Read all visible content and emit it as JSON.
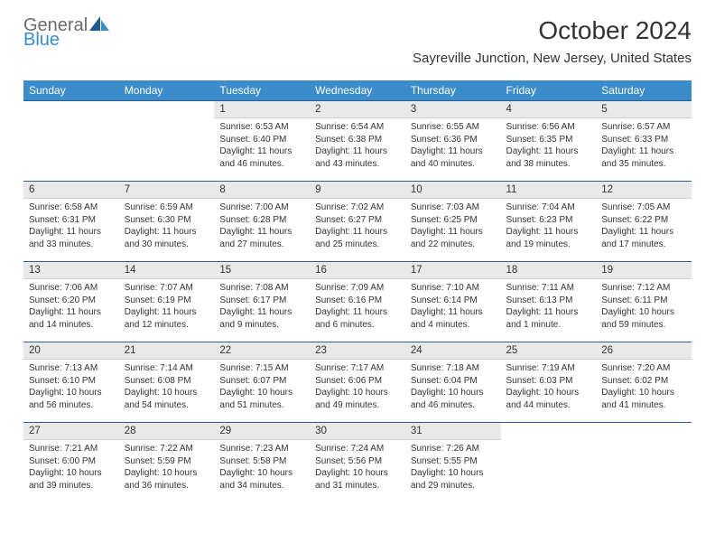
{
  "brand": {
    "part1": "General",
    "part2": "Blue"
  },
  "title": "October 2024",
  "location": "Sayreville Junction, New Jersey, United States",
  "colors": {
    "header_bg": "#3b8ccb",
    "header_text": "#ffffff",
    "daynum_bg": "#e9e9e9",
    "border_top": "#2f5e8a",
    "text": "#333333",
    "logo_gray": "#6b6b6b",
    "logo_blue": "#3b8ccb"
  },
  "days_of_week": [
    "Sunday",
    "Monday",
    "Tuesday",
    "Wednesday",
    "Thursday",
    "Friday",
    "Saturday"
  ],
  "weeks": [
    [
      null,
      null,
      {
        "n": "1",
        "sr": "Sunrise: 6:53 AM",
        "ss": "Sunset: 6:40 PM",
        "dl": "Daylight: 11 hours and 46 minutes."
      },
      {
        "n": "2",
        "sr": "Sunrise: 6:54 AM",
        "ss": "Sunset: 6:38 PM",
        "dl": "Daylight: 11 hours and 43 minutes."
      },
      {
        "n": "3",
        "sr": "Sunrise: 6:55 AM",
        "ss": "Sunset: 6:36 PM",
        "dl": "Daylight: 11 hours and 40 minutes."
      },
      {
        "n": "4",
        "sr": "Sunrise: 6:56 AM",
        "ss": "Sunset: 6:35 PM",
        "dl": "Daylight: 11 hours and 38 minutes."
      },
      {
        "n": "5",
        "sr": "Sunrise: 6:57 AM",
        "ss": "Sunset: 6:33 PM",
        "dl": "Daylight: 11 hours and 35 minutes."
      }
    ],
    [
      {
        "n": "6",
        "sr": "Sunrise: 6:58 AM",
        "ss": "Sunset: 6:31 PM",
        "dl": "Daylight: 11 hours and 33 minutes."
      },
      {
        "n": "7",
        "sr": "Sunrise: 6:59 AM",
        "ss": "Sunset: 6:30 PM",
        "dl": "Daylight: 11 hours and 30 minutes."
      },
      {
        "n": "8",
        "sr": "Sunrise: 7:00 AM",
        "ss": "Sunset: 6:28 PM",
        "dl": "Daylight: 11 hours and 27 minutes."
      },
      {
        "n": "9",
        "sr": "Sunrise: 7:02 AM",
        "ss": "Sunset: 6:27 PM",
        "dl": "Daylight: 11 hours and 25 minutes."
      },
      {
        "n": "10",
        "sr": "Sunrise: 7:03 AM",
        "ss": "Sunset: 6:25 PM",
        "dl": "Daylight: 11 hours and 22 minutes."
      },
      {
        "n": "11",
        "sr": "Sunrise: 7:04 AM",
        "ss": "Sunset: 6:23 PM",
        "dl": "Daylight: 11 hours and 19 minutes."
      },
      {
        "n": "12",
        "sr": "Sunrise: 7:05 AM",
        "ss": "Sunset: 6:22 PM",
        "dl": "Daylight: 11 hours and 17 minutes."
      }
    ],
    [
      {
        "n": "13",
        "sr": "Sunrise: 7:06 AM",
        "ss": "Sunset: 6:20 PM",
        "dl": "Daylight: 11 hours and 14 minutes."
      },
      {
        "n": "14",
        "sr": "Sunrise: 7:07 AM",
        "ss": "Sunset: 6:19 PM",
        "dl": "Daylight: 11 hours and 12 minutes."
      },
      {
        "n": "15",
        "sr": "Sunrise: 7:08 AM",
        "ss": "Sunset: 6:17 PM",
        "dl": "Daylight: 11 hours and 9 minutes."
      },
      {
        "n": "16",
        "sr": "Sunrise: 7:09 AM",
        "ss": "Sunset: 6:16 PM",
        "dl": "Daylight: 11 hours and 6 minutes."
      },
      {
        "n": "17",
        "sr": "Sunrise: 7:10 AM",
        "ss": "Sunset: 6:14 PM",
        "dl": "Daylight: 11 hours and 4 minutes."
      },
      {
        "n": "18",
        "sr": "Sunrise: 7:11 AM",
        "ss": "Sunset: 6:13 PM",
        "dl": "Daylight: 11 hours and 1 minute."
      },
      {
        "n": "19",
        "sr": "Sunrise: 7:12 AM",
        "ss": "Sunset: 6:11 PM",
        "dl": "Daylight: 10 hours and 59 minutes."
      }
    ],
    [
      {
        "n": "20",
        "sr": "Sunrise: 7:13 AM",
        "ss": "Sunset: 6:10 PM",
        "dl": "Daylight: 10 hours and 56 minutes."
      },
      {
        "n": "21",
        "sr": "Sunrise: 7:14 AM",
        "ss": "Sunset: 6:08 PM",
        "dl": "Daylight: 10 hours and 54 minutes."
      },
      {
        "n": "22",
        "sr": "Sunrise: 7:15 AM",
        "ss": "Sunset: 6:07 PM",
        "dl": "Daylight: 10 hours and 51 minutes."
      },
      {
        "n": "23",
        "sr": "Sunrise: 7:17 AM",
        "ss": "Sunset: 6:06 PM",
        "dl": "Daylight: 10 hours and 49 minutes."
      },
      {
        "n": "24",
        "sr": "Sunrise: 7:18 AM",
        "ss": "Sunset: 6:04 PM",
        "dl": "Daylight: 10 hours and 46 minutes."
      },
      {
        "n": "25",
        "sr": "Sunrise: 7:19 AM",
        "ss": "Sunset: 6:03 PM",
        "dl": "Daylight: 10 hours and 44 minutes."
      },
      {
        "n": "26",
        "sr": "Sunrise: 7:20 AM",
        "ss": "Sunset: 6:02 PM",
        "dl": "Daylight: 10 hours and 41 minutes."
      }
    ],
    [
      {
        "n": "27",
        "sr": "Sunrise: 7:21 AM",
        "ss": "Sunset: 6:00 PM",
        "dl": "Daylight: 10 hours and 39 minutes."
      },
      {
        "n": "28",
        "sr": "Sunrise: 7:22 AM",
        "ss": "Sunset: 5:59 PM",
        "dl": "Daylight: 10 hours and 36 minutes."
      },
      {
        "n": "29",
        "sr": "Sunrise: 7:23 AM",
        "ss": "Sunset: 5:58 PM",
        "dl": "Daylight: 10 hours and 34 minutes."
      },
      {
        "n": "30",
        "sr": "Sunrise: 7:24 AM",
        "ss": "Sunset: 5:56 PM",
        "dl": "Daylight: 10 hours and 31 minutes."
      },
      {
        "n": "31",
        "sr": "Sunrise: 7:26 AM",
        "ss": "Sunset: 5:55 PM",
        "dl": "Daylight: 10 hours and 29 minutes."
      },
      null,
      null
    ]
  ]
}
